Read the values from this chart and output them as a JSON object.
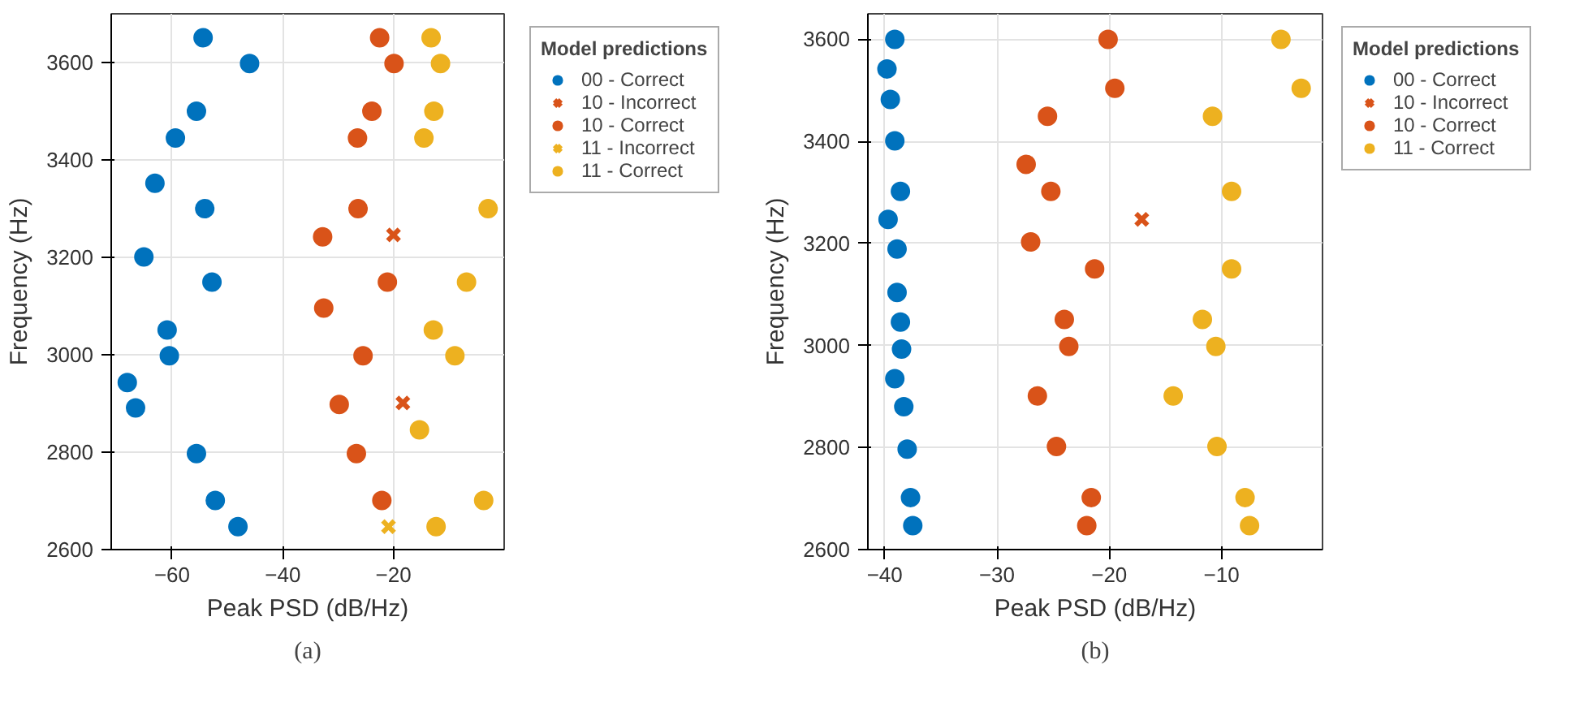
{
  "chart_data": [
    {
      "type": "scatter",
      "xlabel": "Peak PSD (dB/Hz)",
      "ylabel": "Frequency (Hz)",
      "legend_title": "Model predictions",
      "legend": "top right",
      "grid": true,
      "xlim": [
        -71,
        0
      ],
      "xticks": [
        -60,
        -40,
        -20
      ],
      "ylim": [
        2600,
        3700
      ],
      "yticks": [
        2600,
        2800,
        3000,
        3200,
        3400,
        3600
      ],
      "annotations": [
        "(a)"
      ],
      "series": [
        {
          "name": "00 - Correct",
          "color": "#0072bd",
          "marker": "circle",
          "x": [
            -54.4,
            -46.0,
            -55.6,
            -59.4,
            -63.1,
            -54.1,
            -65.1,
            -52.8,
            -60.9,
            -60.5,
            -68.1,
            -66.6,
            -55.6,
            -52.2,
            -48.1
          ],
          "values": [
            3651,
            3598,
            3500,
            3445,
            3352,
            3300,
            3201,
            3149,
            3051,
            2998,
            2943,
            2891,
            2797,
            2701,
            2647
          ]
        },
        {
          "name": "10 - Incorrect",
          "color": "#d95319",
          "marker": "cross",
          "x": [
            -20.0,
            -18.3
          ],
          "values": [
            3246,
            2901
          ]
        },
        {
          "name": "10 - Correct",
          "color": "#d95319",
          "marker": "circle",
          "x": [
            -22.5,
            -19.9,
            -23.9,
            -26.5,
            -26.4,
            -32.8,
            -21.1,
            -32.6,
            -25.5,
            -29.8,
            -26.7,
            -22.1
          ],
          "values": [
            3651,
            3598,
            3500,
            3445,
            3300,
            3242,
            3149,
            3096,
            2998,
            2898,
            2797,
            2701
          ]
        },
        {
          "name": "11 - Incorrect",
          "color": "#edb120",
          "marker": "cross",
          "x": [
            -20.9
          ],
          "values": [
            2647
          ]
        },
        {
          "name": "11 - Correct",
          "color": "#edb120",
          "marker": "circle",
          "x": [
            -13.2,
            -11.5,
            -12.7,
            -14.5,
            -2.9,
            -6.8,
            -12.8,
            -8.9,
            -15.3,
            -3.7,
            -12.3
          ],
          "values": [
            3651,
            3598,
            3500,
            3445,
            3300,
            3149,
            3051,
            2998,
            2846,
            2701,
            2647
          ]
        }
      ]
    },
    {
      "type": "scatter",
      "xlabel": "Peak PSD (dB/Hz)",
      "ylabel": "Frequency (Hz)",
      "legend_title": "Model predictions",
      "legend": "top right",
      "grid": true,
      "xlim": [
        -41.5,
        -1
      ],
      "xticks": [
        -40,
        -30,
        -20,
        -10
      ],
      "ylim": [
        2600,
        3650
      ],
      "yticks": [
        2600,
        2800,
        3000,
        3200,
        3400,
        3600
      ],
      "annotations": [
        "(b)"
      ],
      "series": [
        {
          "name": "00 - Correct",
          "color": "#0072bd",
          "marker": "circle",
          "x": [
            -39.1,
            -39.8,
            -39.5,
            -39.1,
            -38.6,
            -39.7,
            -38.9,
            -38.9,
            -38.6,
            -38.5,
            -39.1,
            -38.3,
            -38.0,
            -37.7,
            -37.5
          ],
          "values": [
            3600,
            3542,
            3482,
            3401,
            3302,
            3247,
            3189,
            3104,
            3046,
            2993,
            2935,
            2880,
            2797,
            2702,
            2647
          ]
        },
        {
          "name": "10 - Incorrect",
          "color": "#d95319",
          "marker": "cross",
          "x": [
            -17.1
          ],
          "values": [
            3247
          ]
        },
        {
          "name": "10 - Correct",
          "color": "#d95319",
          "marker": "circle",
          "x": [
            -20.1,
            -19.5,
            -25.5,
            -27.4,
            -25.2,
            -27.0,
            -21.3,
            -24.0,
            -23.6,
            -26.4,
            -24.7,
            -21.6,
            -22.0
          ],
          "values": [
            3600,
            3504,
            3449,
            3355,
            3302,
            3203,
            3150,
            3051,
            2998,
            2901,
            2802,
            2702,
            2647
          ]
        },
        {
          "name": "11 - Correct",
          "color": "#edb120",
          "marker": "circle",
          "x": [
            -4.7,
            -2.9,
            -10.8,
            -9.1,
            -9.1,
            -11.7,
            -10.5,
            -14.3,
            -10.4,
            -7.9,
            -7.5
          ],
          "values": [
            3600,
            3504,
            3449,
            3302,
            3150,
            3051,
            2998,
            2901,
            2802,
            2702,
            2647
          ]
        }
      ]
    }
  ]
}
